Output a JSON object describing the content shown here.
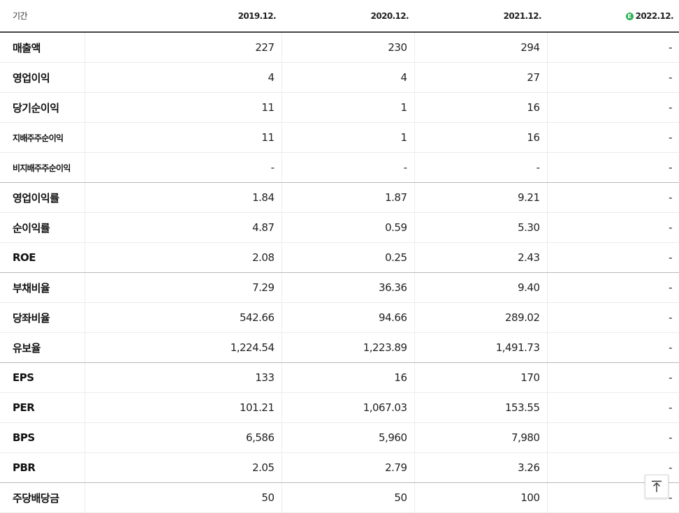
{
  "header": {
    "period_label": "기간",
    "years": [
      "2019.12.",
      "2020.12.",
      "2021.12.",
      "2022.12."
    ],
    "estimate_badge": "E"
  },
  "rows": [
    {
      "label": "매출액",
      "values": [
        "227",
        "230",
        "294",
        "-"
      ]
    },
    {
      "label": "영업이익",
      "values": [
        "4",
        "4",
        "27",
        "-"
      ]
    },
    {
      "label": "당기순이익",
      "values": [
        "11",
        "1",
        "16",
        "-"
      ]
    },
    {
      "label": "지배주주순이익",
      "values": [
        "11",
        "1",
        "16",
        "-"
      ]
    },
    {
      "label": "비지배주주순이익",
      "values": [
        "-",
        "-",
        "-",
        "-"
      ]
    },
    {
      "label": "영업이익률",
      "values": [
        "1.84",
        "1.87",
        "9.21",
        "-"
      ]
    },
    {
      "label": "순이익률",
      "values": [
        "4.87",
        "0.59",
        "5.30",
        "-"
      ]
    },
    {
      "label": "ROE",
      "values": [
        "2.08",
        "0.25",
        "2.43",
        "-"
      ]
    },
    {
      "label": "부채비율",
      "values": [
        "7.29",
        "36.36",
        "9.40",
        "-"
      ]
    },
    {
      "label": "당좌비율",
      "values": [
        "542.66",
        "94.66",
        "289.02",
        "-"
      ]
    },
    {
      "label": "유보율",
      "values": [
        "1,224.54",
        "1,223.89",
        "1,491.73",
        "-"
      ]
    },
    {
      "label": "EPS",
      "values": [
        "133",
        "16",
        "170",
        "-"
      ]
    },
    {
      "label": "PER",
      "values": [
        "101.21",
        "1,067.03",
        "153.55",
        "-"
      ]
    },
    {
      "label": "BPS",
      "values": [
        "6,586",
        "5,960",
        "7,980",
        "-"
      ]
    },
    {
      "label": "PBR",
      "values": [
        "2.05",
        "2.79",
        "3.26",
        "-"
      ]
    },
    {
      "label": "주당배당금",
      "values": [
        "50",
        "50",
        "100",
        "-"
      ]
    }
  ],
  "scroll_top": {
    "icon": "arrow-up-to-line-icon"
  }
}
